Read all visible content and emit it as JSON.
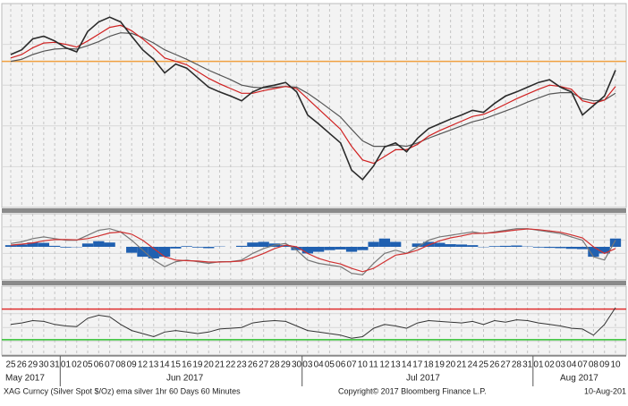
{
  "chart_data": [
    {
      "type": "line",
      "categories": [
        "25",
        "26",
        "29",
        "30",
        "31",
        "01",
        "02",
        "05",
        "06",
        "07",
        "08",
        "09",
        "12",
        "13",
        "14",
        "15",
        "16",
        "19",
        "20",
        "21",
        "22",
        "23",
        "26",
        "27",
        "28",
        "29",
        "30",
        "03",
        "04",
        "05",
        "06",
        "07",
        "10",
        "11",
        "12",
        "13",
        "14",
        "17",
        "18",
        "19",
        "20",
        "21",
        "24",
        "25",
        "26",
        "27",
        "28",
        "31",
        "01",
        "02",
        "03",
        "04",
        "07",
        "08",
        "09",
        "10"
      ],
      "ylim": [
        15.0,
        18.0
      ],
      "reference_line": {
        "value": 17.15,
        "color": "#f0a040"
      },
      "series": [
        {
          "color": "#2a2a2a",
          "values": [
            17.25,
            17.32,
            17.48,
            17.52,
            17.45,
            17.35,
            17.29,
            17.59,
            17.73,
            17.8,
            17.73,
            17.52,
            17.32,
            17.18,
            16.98,
            17.11,
            17.05,
            16.91,
            16.77,
            16.7,
            16.64,
            16.57,
            16.7,
            16.77,
            16.8,
            16.84,
            16.7,
            16.36,
            16.23,
            16.09,
            15.95,
            15.55,
            15.41,
            15.61,
            15.89,
            15.95,
            15.82,
            16.02,
            16.16,
            16.23,
            16.3,
            16.36,
            16.43,
            16.4,
            16.53,
            16.64,
            16.7,
            16.77,
            16.84,
            16.88,
            16.77,
            16.7,
            16.36,
            16.5,
            16.64,
            17.02
          ]
        },
        {
          "color": "#d02020",
          "values": [
            17.2,
            17.25,
            17.35,
            17.42,
            17.43,
            17.4,
            17.36,
            17.45,
            17.55,
            17.65,
            17.68,
            17.6,
            17.48,
            17.35,
            17.2,
            17.15,
            17.1,
            17.0,
            16.9,
            16.82,
            16.75,
            16.68,
            16.68,
            16.72,
            16.75,
            16.78,
            16.75,
            16.6,
            16.45,
            16.3,
            16.15,
            15.9,
            15.7,
            15.65,
            15.75,
            15.85,
            15.85,
            15.93,
            16.05,
            16.13,
            16.2,
            16.27,
            16.34,
            16.37,
            16.44,
            16.52,
            16.6,
            16.67,
            16.74,
            16.8,
            16.78,
            16.74,
            16.57,
            16.53,
            16.58,
            16.78
          ]
        },
        {
          "color": "#555555",
          "values": [
            17.15,
            17.18,
            17.25,
            17.3,
            17.33,
            17.34,
            17.33,
            17.38,
            17.44,
            17.52,
            17.57,
            17.56,
            17.5,
            17.42,
            17.32,
            17.25,
            17.18,
            17.1,
            17.02,
            16.95,
            16.88,
            16.8,
            16.77,
            16.76,
            16.77,
            16.78,
            16.77,
            16.68,
            16.57,
            16.45,
            16.33,
            16.15,
            15.98,
            15.9,
            15.9,
            15.92,
            15.9,
            15.95,
            16.02,
            16.08,
            16.14,
            16.2,
            16.26,
            16.3,
            16.36,
            16.42,
            16.48,
            16.55,
            16.61,
            16.67,
            16.69,
            16.69,
            16.6,
            16.57,
            16.58,
            16.68
          ]
        }
      ]
    },
    {
      "type": "macd",
      "ylim": [
        -1,
        1
      ],
      "histogram": {
        "color": "#2060b0",
        "values": [
          0.05,
          0.07,
          0.13,
          0.12,
          0.03,
          -0.02,
          -0.01,
          0.1,
          0.17,
          0.13,
          0.0,
          -0.18,
          -0.3,
          -0.35,
          -0.3,
          -0.05,
          0.02,
          -0.02,
          -0.04,
          0.01,
          0.0,
          0.03,
          0.13,
          0.15,
          0.1,
          0.05,
          -0.1,
          -0.2,
          -0.15,
          -0.1,
          -0.08,
          -0.15,
          -0.1,
          0.15,
          0.25,
          0.15,
          0.0,
          0.1,
          0.15,
          0.12,
          0.08,
          0.07,
          0.05,
          -0.01,
          0.02,
          0.03,
          0.04,
          0.01,
          -0.02,
          -0.03,
          -0.04,
          -0.06,
          -0.07,
          -0.3,
          -0.2,
          0.25
        ]
      },
      "series": [
        {
          "color": "#777777",
          "values": [
            0.1,
            0.15,
            0.25,
            0.3,
            0.25,
            0.2,
            0.2,
            0.35,
            0.5,
            0.55,
            0.45,
            0.2,
            -0.1,
            -0.4,
            -0.6,
            -0.45,
            -0.4,
            -0.45,
            -0.5,
            -0.45,
            -0.45,
            -0.4,
            -0.2,
            -0.05,
            0.05,
            0.1,
            -0.1,
            -0.4,
            -0.5,
            -0.55,
            -0.6,
            -0.8,
            -0.85,
            -0.5,
            -0.2,
            -0.1,
            -0.2,
            0.0,
            0.2,
            0.3,
            0.35,
            0.4,
            0.45,
            0.4,
            0.45,
            0.5,
            0.55,
            0.55,
            0.5,
            0.45,
            0.4,
            0.3,
            0.2,
            -0.3,
            -0.4,
            0.2
          ]
        },
        {
          "color": "#d03030",
          "values": [
            0.05,
            0.08,
            0.12,
            0.18,
            0.22,
            0.22,
            0.21,
            0.25,
            0.33,
            0.42,
            0.45,
            0.38,
            0.2,
            -0.05,
            -0.3,
            -0.4,
            -0.42,
            -0.43,
            -0.46,
            -0.46,
            -0.45,
            -0.43,
            -0.33,
            -0.2,
            -0.05,
            0.05,
            0.0,
            -0.2,
            -0.35,
            -0.45,
            -0.52,
            -0.65,
            -0.75,
            -0.65,
            -0.45,
            -0.25,
            -0.2,
            -0.1,
            0.05,
            0.18,
            0.27,
            0.33,
            0.4,
            0.41,
            0.43,
            0.47,
            0.51,
            0.54,
            0.52,
            0.48,
            0.44,
            0.36,
            0.27,
            0.0,
            -0.2,
            -0.05
          ]
        }
      ]
    },
    {
      "type": "rsi",
      "ylim": [
        10,
        100
      ],
      "levels": [
        {
          "value": 70,
          "color": "#e03030"
        },
        {
          "value": 30,
          "color": "#30c030"
        }
      ],
      "series": [
        {
          "color": "#333333",
          "values": [
            50,
            52,
            55,
            54,
            50,
            48,
            47,
            58,
            62,
            60,
            50,
            42,
            38,
            34,
            40,
            42,
            40,
            38,
            40,
            44,
            45,
            46,
            52,
            54,
            55,
            54,
            48,
            42,
            40,
            38,
            36,
            32,
            34,
            45,
            50,
            48,
            45,
            52,
            55,
            54,
            53,
            52,
            54,
            50,
            55,
            53,
            56,
            55,
            52,
            50,
            48,
            45,
            44,
            36,
            50,
            72
          ]
        }
      ]
    }
  ],
  "months": [
    "May 2017",
    "Jun 2017",
    "Jul 2017",
    "Aug 2017"
  ],
  "footer": {
    "description": "XAG Curncy (Silver Spot  $/Oz) ema silver 1hr 60 Days 60 Minutes",
    "copyright": "Copyright© 2017 Bloomberg Finance L.P.",
    "date": "10-Aug-201"
  }
}
